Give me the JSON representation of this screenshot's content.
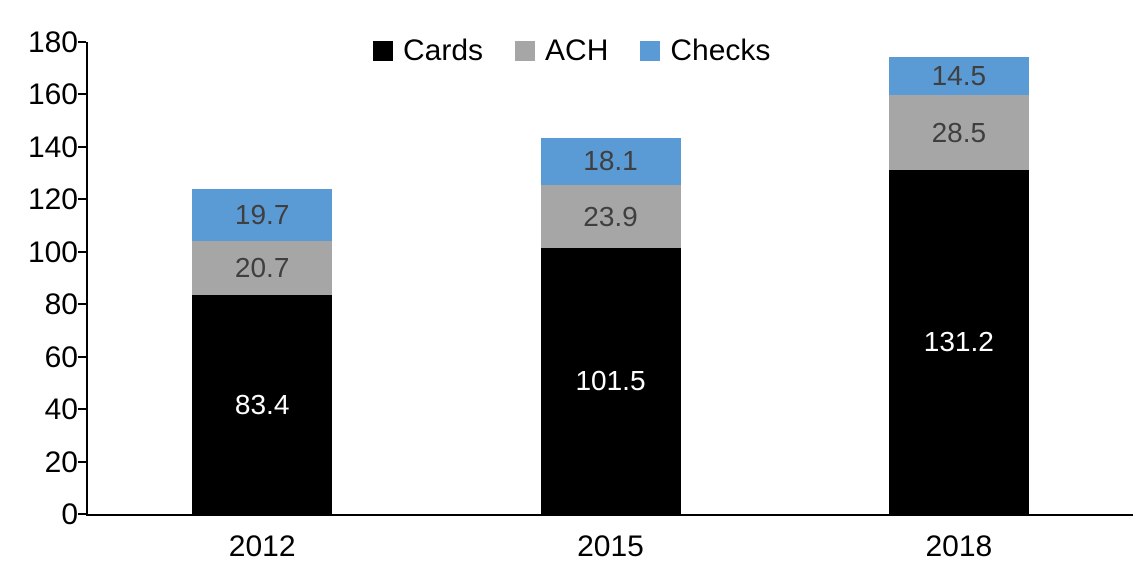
{
  "chart_data": {
    "type": "bar",
    "stacked": true,
    "title": "",
    "xlabel": "",
    "ylabel": "",
    "categories": [
      "2012",
      "2015",
      "2018"
    ],
    "series": [
      {
        "name": "Cards",
        "color": "#000000",
        "label_color": "#ffffff",
        "values": [
          83.4,
          101.5,
          131.2
        ]
      },
      {
        "name": "ACH",
        "color": "#a6a6a6",
        "label_color": "#3f3f3f",
        "values": [
          20.7,
          23.9,
          28.5
        ]
      },
      {
        "name": "Checks",
        "color": "#5b9bd5",
        "label_color": "#3f3f3f",
        "values": [
          19.7,
          18.1,
          14.5
        ]
      }
    ],
    "ylim": [
      0,
      180
    ],
    "ytick_step": 20,
    "grid": false,
    "legend_position": "top",
    "axis_color": "#000000",
    "background_color": "#ffffff"
  }
}
